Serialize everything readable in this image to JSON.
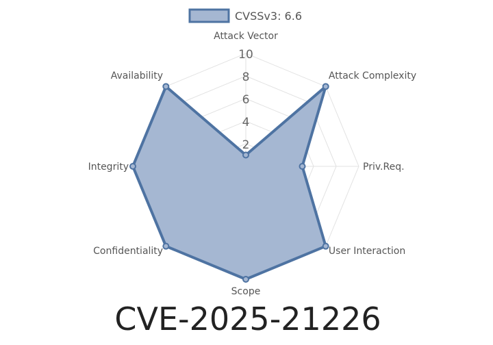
{
  "chart_data": {
    "type": "radar",
    "title": "CVE-2025-21226",
    "labels": [
      "Attack Vector",
      "Attack Complexity",
      "Priv.Req.",
      "User Interaction",
      "Scope",
      "Confidentiality",
      "Integrity",
      "Availability"
    ],
    "series": [
      {
        "name": "CVSSv3: 6.6",
        "values": [
          1,
          10,
          5,
          10,
          10,
          10,
          10,
          10
        ],
        "fill_color": "#a5b7d2",
        "line_color": "#4e73a2"
      }
    ],
    "r_ticks": [
      2,
      4,
      6,
      8,
      10
    ],
    "rlim": [
      0,
      10
    ],
    "grid": true,
    "legend_position": "top-center"
  }
}
